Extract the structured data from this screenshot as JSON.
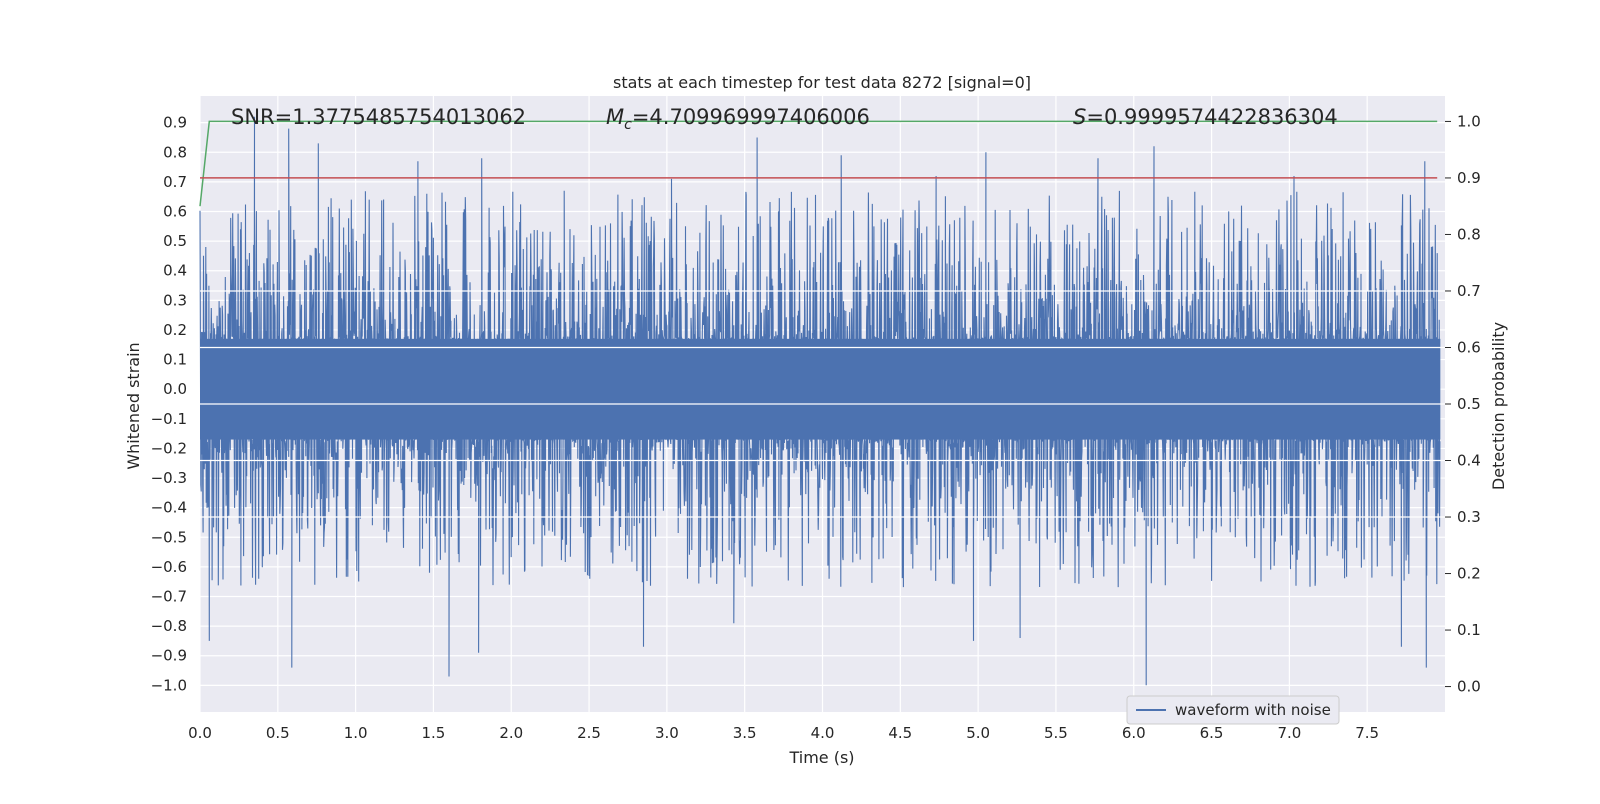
{
  "chart_data": {
    "type": "line",
    "title": "stats at each timestep for test data 8272 [signal=0]",
    "xlabel": "Time (s)",
    "ylabel": "Whitened strain",
    "y2label": "Detection probability",
    "xlim": [
      0.0,
      8.0
    ],
    "ylim": [
      -1.09,
      0.99
    ],
    "y2lim": [
      -0.045,
      1.045
    ],
    "x_ticks": [
      "0.0",
      "0.5",
      "1.0",
      "1.5",
      "2.0",
      "2.5",
      "3.0",
      "3.5",
      "4.0",
      "4.5",
      "5.0",
      "5.5",
      "6.0",
      "6.5",
      "7.0",
      "7.5"
    ],
    "y_ticks": [
      "0.9",
      "0.8",
      "0.7",
      "0.6",
      "0.5",
      "0.4",
      "0.3",
      "0.2",
      "0.1",
      "0.0",
      "−0.1",
      "−0.2",
      "−0.3",
      "−0.4",
      "−0.5",
      "−0.6",
      "−0.7",
      "−0.8",
      "−0.9",
      "−1.0"
    ],
    "y2_ticks": [
      "1.0",
      "0.9",
      "0.8",
      "0.7",
      "0.6",
      "0.5",
      "0.4",
      "0.3",
      "0.2",
      "0.1",
      "0.0"
    ],
    "grid": true,
    "legend_position": "lower-right",
    "annotations": {
      "snr": "SNR=1.3775485754013062",
      "mc_prefix": "M",
      "mc_sub": "c",
      "mc_value": "=4.709969997406006",
      "s_prefix": "S",
      "s_value": "=0.9999574422836304"
    },
    "series": [
      {
        "name": "waveform with noise",
        "axis": "left",
        "color": "#4c72b0",
        "style": "dense noise",
        "positive_peaks": [
          {
            "x": 0.35,
            "y": 0.92
          },
          {
            "x": 0.57,
            "y": 0.88
          },
          {
            "x": 0.76,
            "y": 0.83
          },
          {
            "x": 1.4,
            "y": 0.77
          },
          {
            "x": 1.81,
            "y": 0.78
          },
          {
            "x": 2.34,
            "y": 0.67
          },
          {
            "x": 3.03,
            "y": 0.71
          },
          {
            "x": 3.58,
            "y": 0.85
          },
          {
            "x": 4.12,
            "y": 0.79
          },
          {
            "x": 4.73,
            "y": 0.72
          },
          {
            "x": 5.05,
            "y": 0.8
          },
          {
            "x": 5.77,
            "y": 0.78
          },
          {
            "x": 6.13,
            "y": 0.82
          },
          {
            "x": 7.03,
            "y": 0.72
          },
          {
            "x": 7.87,
            "y": 0.77
          }
        ],
        "negative_peaks": [
          {
            "x": 0.06,
            "y": -0.85
          },
          {
            "x": 0.59,
            "y": -0.94
          },
          {
            "x": 1.6,
            "y": -0.97
          },
          {
            "x": 1.79,
            "y": -0.89
          },
          {
            "x": 2.85,
            "y": -0.87
          },
          {
            "x": 3.43,
            "y": -0.79
          },
          {
            "x": 4.97,
            "y": -0.85
          },
          {
            "x": 5.27,
            "y": -0.84
          },
          {
            "x": 6.08,
            "y": -1.0
          },
          {
            "x": 7.72,
            "y": -0.87
          },
          {
            "x": 7.88,
            "y": -0.94
          }
        ]
      },
      {
        "name": "",
        "axis": "right",
        "color": "#55a868",
        "x": [
          0.0,
          0.06,
          0.08,
          7.95
        ],
        "y": [
          0.85,
          1.0,
          1.0,
          1.0
        ]
      },
      {
        "name": "",
        "axis": "right",
        "color": "#c44e52",
        "x": [
          0.0,
          7.95
        ],
        "y": [
          0.9,
          0.9
        ]
      }
    ]
  }
}
